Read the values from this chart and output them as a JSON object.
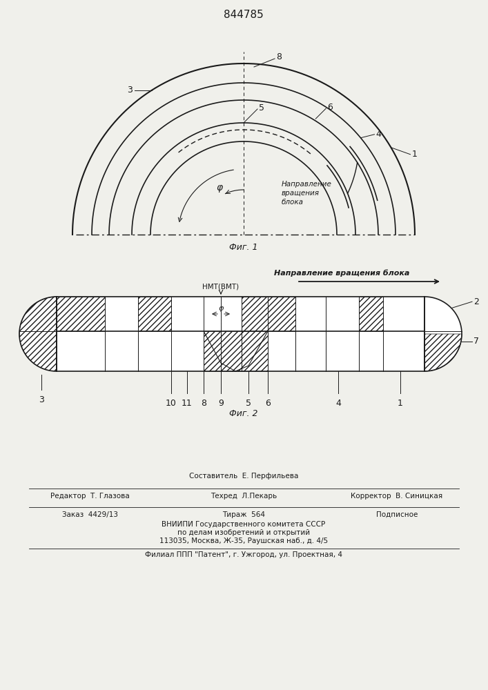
{
  "title": "844785",
  "fig1_caption": "Фиг. 1",
  "fig2_caption": "Фиг. 2",
  "direction_text1": "Направление\nвращения\nблока",
  "direction_label": "Направление вращения блока",
  "nmt_label": "НМТ(ВМТ)",
  "bottom_line1": "Составитель  Е. Перфильева",
  "bottom_line2a": "Редактор  Т. Глазова",
  "bottom_line2b": "Техред  Л.Пекарь",
  "bottom_line2c": "Корректор  В. Синицкая",
  "bottom_line3a": "Заказ  4429/13",
  "bottom_line3b": "Тираж  564",
  "bottom_line3c": "Подписное",
  "bottom_line4": "ВНИИПИ Государственного комитета СССР",
  "bottom_line5": "по делам изобретений и открытий",
  "bottom_line6": "113035, Москва, Ж-35, Раушская наб., д. 4/5",
  "bottom_line7": "Филиал ППП \"Патент\", г. Ужгород, ул. Проектная, 4",
  "bg_color": "#f0f0eb",
  "line_color": "#1a1a1a"
}
